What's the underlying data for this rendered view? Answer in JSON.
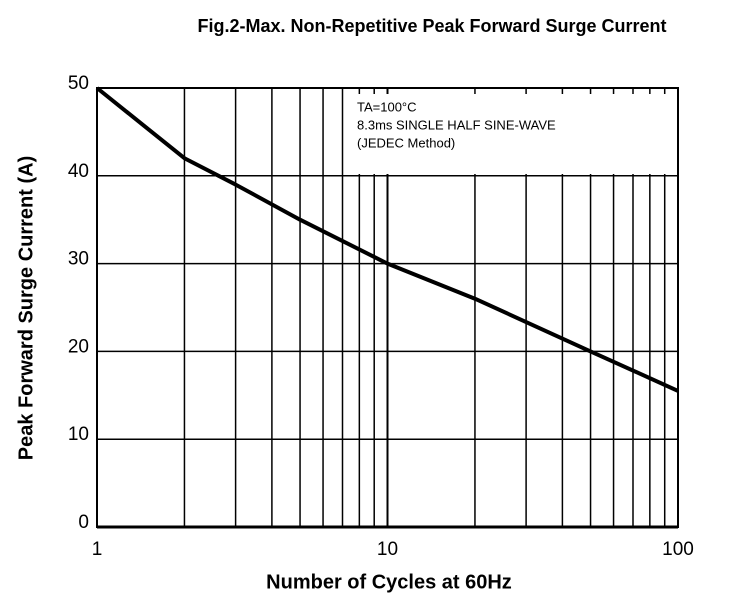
{
  "chart_data": {
    "type": "line",
    "title": "Fig.2-Max. Non-Repetitive Peak Forward Surge Current",
    "x_label": "Number of Cycles at 60Hz",
    "y_label": "Peak Forward Surge Current (A)",
    "annotation": [
      "TA=100°C",
      "8.3ms SINGLE HALF SINE-WAVE",
      "(JEDEC Method)"
    ],
    "x": [
      1,
      2,
      3,
      5,
      10,
      20,
      50,
      100
    ],
    "series": [
      {
        "name": "Peak Forward Surge Current",
        "color": "#000000",
        "values": [
          50,
          42,
          39,
          35,
          30,
          26,
          20,
          15.5
        ]
      }
    ],
    "x_log": true,
    "xlim": [
      1,
      100
    ],
    "xticks": [
      1,
      10,
      100
    ],
    "xgrid": [
      2,
      3,
      4,
      5,
      6,
      7,
      8,
      9,
      20,
      30,
      40,
      50,
      60,
      70,
      80,
      90
    ],
    "ylim": [
      0,
      50
    ],
    "yticks": [
      0,
      10,
      20,
      30,
      40,
      50
    ],
    "grid": true,
    "legend": false
  }
}
